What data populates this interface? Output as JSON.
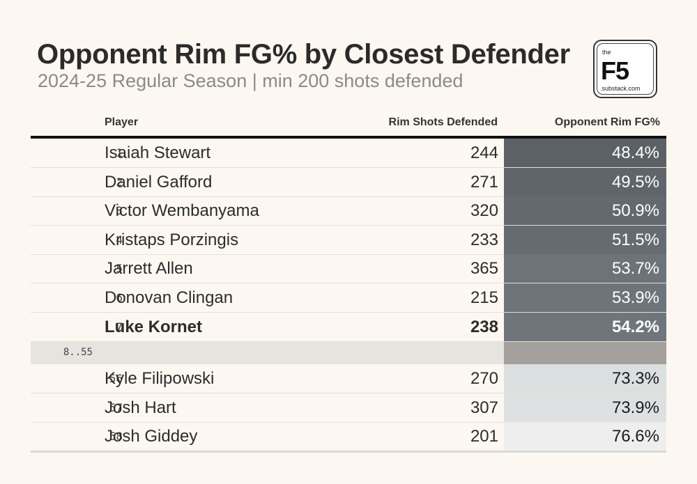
{
  "title": "Opponent Rim FG% by Closest Defender",
  "subtitle": "2024-25 Regular Season | min 200 shots defended",
  "logo": {
    "the": "the",
    "main": "F5",
    "sub": ".substack.com"
  },
  "headers": {
    "player": "Player",
    "shots": "Rim Shots Defended",
    "fg": "Opponent Rim FG%"
  },
  "rows_top": [
    {
      "rank": "1",
      "player": "Isaiah Stewart",
      "shots": "244",
      "fg": "48.4%",
      "color": "#5c6165",
      "text_color": "#ffffff",
      "bold": false
    },
    {
      "rank": "2",
      "player": "Daniel Gafford",
      "shots": "271",
      "fg": "49.5%",
      "color": "#5f656a",
      "text_color": "#ffffff",
      "bold": false
    },
    {
      "rank": "3",
      "player": "Victor Wembanyama",
      "shots": "320",
      "fg": "50.9%",
      "color": "#63696e",
      "text_color": "#ffffff",
      "bold": false
    },
    {
      "rank": "4",
      "player": "Kristaps Porzingis",
      "shots": "233",
      "fg": "51.5%",
      "color": "#656c71",
      "text_color": "#ffffff",
      "bold": false
    },
    {
      "rank": "5",
      "player": "Jarrett Allen",
      "shots": "365",
      "fg": "53.7%",
      "color": "#6c7479",
      "text_color": "#ffffff",
      "bold": false
    },
    {
      "rank": "6",
      "player": "Donovan Clingan",
      "shots": "215",
      "fg": "53.9%",
      "color": "#6d757a",
      "text_color": "#ffffff",
      "bold": false
    },
    {
      "rank": "7",
      "player": "Luke Kornet",
      "shots": "238",
      "fg": "54.2%",
      "color": "#6e767b",
      "text_color": "#ffffff",
      "bold": true
    }
  ],
  "gap_label": "8..55",
  "rows_bottom": [
    {
      "rank": "56",
      "player": "Kyle Filipowski",
      "shots": "270",
      "fg": "73.3%",
      "color": "#dadfe0",
      "text_color": "#1a1a1a",
      "bold": false
    },
    {
      "rank": "57",
      "player": "Josh Hart",
      "shots": "307",
      "fg": "73.9%",
      "color": "#dde1e2",
      "text_color": "#1a1a1a",
      "bold": false
    },
    {
      "rank": "58",
      "player": "Josh Giddey",
      "shots": "201",
      "fg": "76.6%",
      "color": "#eeeeef",
      "text_color": "#1a1a1a",
      "bold": false
    }
  ]
}
